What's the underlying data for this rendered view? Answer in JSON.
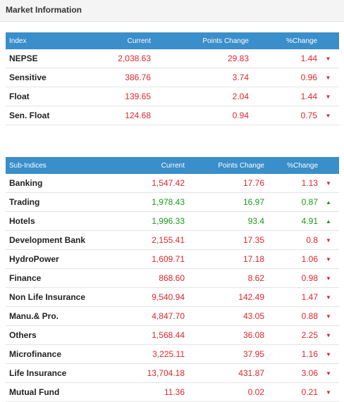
{
  "header": {
    "title": "Market Information"
  },
  "index_table": {
    "columns": [
      "Index",
      "Current",
      "Points Change",
      "%Change"
    ],
    "rows": [
      {
        "name": "NEPSE",
        "current": "2,038.63",
        "points": "29.83",
        "pct": "1.44",
        "dir": "down"
      },
      {
        "name": "Sensitive",
        "current": "386.76",
        "points": "3.74",
        "pct": "0.96",
        "dir": "down"
      },
      {
        "name": "Float",
        "current": "139.65",
        "points": "2.04",
        "pct": "1.44",
        "dir": "down"
      },
      {
        "name": "Sen. Float",
        "current": "124.68",
        "points": "0.94",
        "pct": "0.75",
        "dir": "down"
      }
    ]
  },
  "sub_indices_table": {
    "columns": [
      "Sub-Indices",
      "Current",
      "Points Change",
      "%Change"
    ],
    "rows": [
      {
        "name": "Banking",
        "current": "1,547.42",
        "points": "17.76",
        "pct": "1.13",
        "dir": "down"
      },
      {
        "name": "Trading",
        "current": "1,978.43",
        "points": "16.97",
        "pct": "0.87",
        "dir": "up"
      },
      {
        "name": "Hotels",
        "current": "1,996.33",
        "points": "93.4",
        "pct": "4.91",
        "dir": "up"
      },
      {
        "name": "Development Bank",
        "current": "2,155.41",
        "points": "17.35",
        "pct": "0.8",
        "dir": "down"
      },
      {
        "name": "HydroPower",
        "current": "1,609.71",
        "points": "17.18",
        "pct": "1.06",
        "dir": "down"
      },
      {
        "name": "Finance",
        "current": "868.60",
        "points": "8.62",
        "pct": "0.98",
        "dir": "down"
      },
      {
        "name": "Non Life Insurance",
        "current": "9,540.94",
        "points": "142.49",
        "pct": "1.47",
        "dir": "down"
      },
      {
        "name": "Manu.& Pro.",
        "current": "4,847.70",
        "points": "43.05",
        "pct": "0.88",
        "dir": "down"
      },
      {
        "name": "Others",
        "current": "1,568.44",
        "points": "36.08",
        "pct": "2.25",
        "dir": "down"
      },
      {
        "name": "Microfinance",
        "current": "3,225.11",
        "points": "37.95",
        "pct": "1.16",
        "dir": "down"
      },
      {
        "name": "Life Insurance",
        "current": "13,704.18",
        "points": "431.87",
        "pct": "3.06",
        "dir": "down"
      },
      {
        "name": "Mutual Fund",
        "current": "11.36",
        "points": "0.02",
        "pct": "0.21",
        "dir": "down"
      }
    ]
  },
  "colors": {
    "header_bg": "#3a8ec9",
    "down": "#e0252b",
    "up": "#1a9a1a"
  },
  "icons": {
    "down": "triangle-down-icon",
    "up": "triangle-up-icon"
  }
}
